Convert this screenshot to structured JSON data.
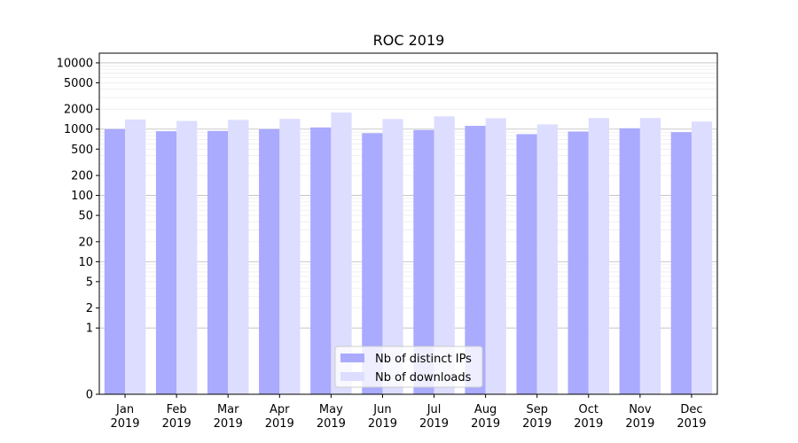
{
  "chart_data": {
    "type": "bar",
    "title": "ROC 2019",
    "xlabel": "",
    "ylabel": "",
    "y_scale": "symlog",
    "ylim": [
      0,
      14000
    ],
    "y_ticks": [
      0,
      1,
      2,
      5,
      10,
      20,
      50,
      100,
      200,
      500,
      1000,
      2000,
      5000,
      10000
    ],
    "y_tick_labels": [
      "0",
      "1",
      "2",
      "5",
      "10",
      "20",
      "50",
      "100",
      "200",
      "500",
      "1000",
      "2000",
      "5000",
      "10000"
    ],
    "grid": "horizontal",
    "categories": [
      [
        "Jan",
        "2019"
      ],
      [
        "Feb",
        "2019"
      ],
      [
        "Mar",
        "2019"
      ],
      [
        "Apr",
        "2019"
      ],
      [
        "May",
        "2019"
      ],
      [
        "Jun",
        "2019"
      ],
      [
        "Jul",
        "2019"
      ],
      [
        "Aug",
        "2019"
      ],
      [
        "Sep",
        "2019"
      ],
      [
        "Oct",
        "2019"
      ],
      [
        "Nov",
        "2019"
      ],
      [
        "Dec",
        "2019"
      ]
    ],
    "series": [
      {
        "name": "Nb of distinct IPs",
        "color": "#aaaaff",
        "values": [
          1000,
          930,
          940,
          1000,
          1060,
          870,
          970,
          1120,
          840,
          920,
          1030,
          900
        ]
      },
      {
        "name": "Nb of downloads",
        "color": "#ddddff",
        "values": [
          1400,
          1330,
          1380,
          1430,
          1780,
          1420,
          1560,
          1460,
          1180,
          1470,
          1470,
          1300
        ]
      }
    ],
    "legend": "bottom-center"
  }
}
